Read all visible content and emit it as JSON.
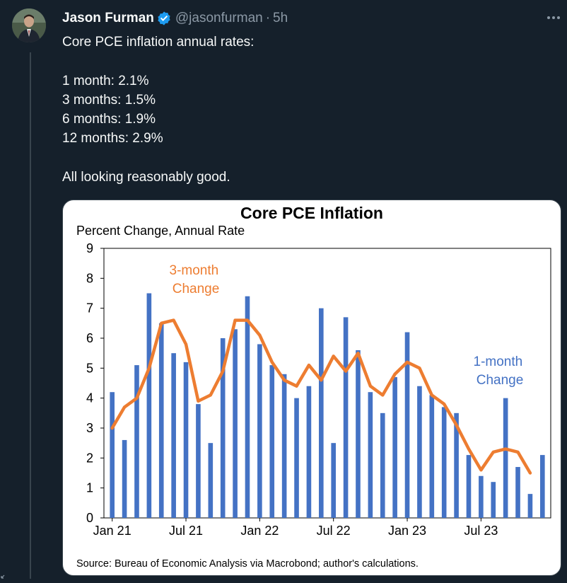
{
  "tweet": {
    "display_name": "Jason Furman",
    "handle": "@jasonfurman",
    "dot": "·",
    "time": "5h",
    "more_icon": "more-icon",
    "verified_icon": "verified-icon",
    "lines": [
      "Core PCE inflation annual rates:",
      "",
      "1 month: 2.1%",
      "3 months: 1.5%",
      "6 months: 1.9%",
      "12 months: 2.9%",
      "",
      "All looking reasonably good."
    ]
  },
  "colors": {
    "bar": "#4472c4",
    "line": "#ed7d31",
    "background": "#15202b"
  },
  "chart_data": {
    "type": "bar",
    "title": "Core PCE Inflation",
    "subtitle": "Percent Change, Annual Rate",
    "ylim": [
      0,
      9
    ],
    "y_ticks": [
      "0",
      "1",
      "2",
      "3",
      "4",
      "5",
      "6",
      "7",
      "8",
      "9"
    ],
    "x_tick_labels": [
      "Jan 21",
      "Jul 21",
      "Jan 22",
      "Jul 22",
      "Jan 23",
      "Jul 23"
    ],
    "x_tick_indices": [
      0,
      6,
      12,
      18,
      24,
      30
    ],
    "source": "Source: Bureau of Economic Analysis via Macrobond; author's calculations.",
    "series": [
      {
        "name": "1-month Change",
        "type": "bar",
        "values": [
          4.2,
          2.6,
          5.1,
          7.5,
          6.5,
          5.5,
          5.2,
          3.8,
          2.5,
          6.0,
          6.3,
          7.4,
          5.8,
          5.1,
          4.8,
          4.0,
          4.4,
          7.0,
          2.5,
          6.7,
          5.6,
          4.2,
          3.5,
          4.7,
          6.2,
          4.4,
          4.1,
          3.7,
          3.5,
          2.1,
          1.4,
          1.2,
          4.0,
          1.7,
          0.8,
          2.1
        ]
      },
      {
        "name": "3-month Change",
        "type": "line",
        "values": [
          3.0,
          3.7,
          4.0,
          5.0,
          6.5,
          6.6,
          5.8,
          3.9,
          4.1,
          4.9,
          6.6,
          6.6,
          6.1,
          5.2,
          4.6,
          4.4,
          5.1,
          4.6,
          5.4,
          4.9,
          5.5,
          4.4,
          4.1,
          4.8,
          5.2,
          5.0,
          4.1,
          3.8,
          3.1,
          2.3,
          1.6,
          2.2,
          2.3,
          2.2,
          1.5
        ]
      }
    ]
  }
}
